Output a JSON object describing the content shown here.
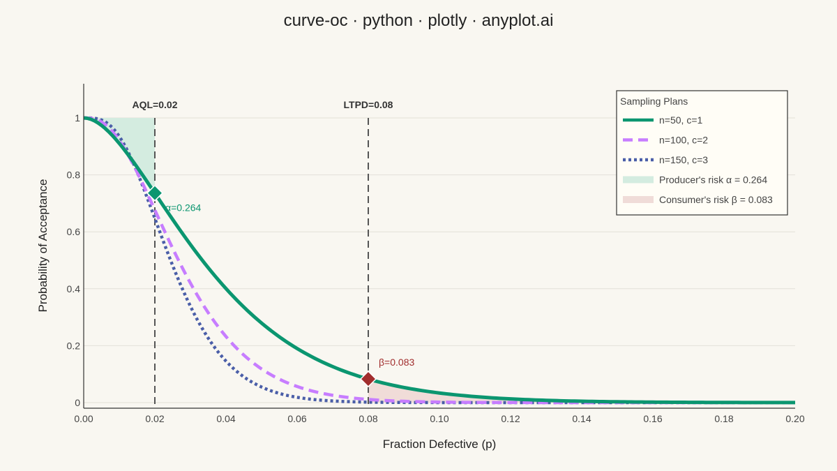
{
  "chart_data": {
    "type": "line",
    "title": "curve-oc · python · plotly · anyplot.ai",
    "xlabel": "Fraction Defective (p)",
    "ylabel": "Probability of Acceptance",
    "xlim": [
      0,
      0.2
    ],
    "ylim": [
      0,
      1
    ],
    "x_ticks": [
      "0.00",
      "0.02",
      "0.04",
      "0.06",
      "0.08",
      "0.10",
      "0.12",
      "0.14",
      "0.16",
      "0.18",
      "0.20"
    ],
    "y_ticks": [
      "0",
      "0.2",
      "0.4",
      "0.6",
      "0.8",
      "1"
    ],
    "grid": true,
    "legend": {
      "title": "Sampling Plans",
      "placement": "top-right"
    },
    "series": [
      {
        "name": "n=50, c=1",
        "n": 50,
        "c": 1,
        "color": "#0b9670",
        "dash": "solid"
      },
      {
        "name": "n=100, c=2",
        "n": 100,
        "c": 2,
        "color": "#c77dff",
        "dash": "dash"
      },
      {
        "name": "n=150, c=3",
        "n": 150,
        "c": 3,
        "color": "#4a5ea8",
        "dash": "dot"
      }
    ],
    "reference_lines": [
      {
        "label": "AQL=0.02",
        "x": 0.02
      },
      {
        "label": "LTPD=0.08",
        "x": 0.08
      }
    ],
    "risk_areas": [
      {
        "name": "Producer's risk α = 0.264",
        "x_from": 0,
        "x_to": 0.02,
        "color": "#d4ece0"
      },
      {
        "name": "Consumer's risk β = 0.083",
        "x_from": 0.08,
        "x_to": 0.2,
        "color": "#f0dcd8"
      }
    ],
    "annotations": [
      {
        "label": "α=0.264",
        "x": 0.02,
        "y": 0.736,
        "color": "#0b9670"
      },
      {
        "label": "β=0.083",
        "x": 0.08,
        "y": 0.083,
        "color": "#a12d2d"
      }
    ]
  }
}
